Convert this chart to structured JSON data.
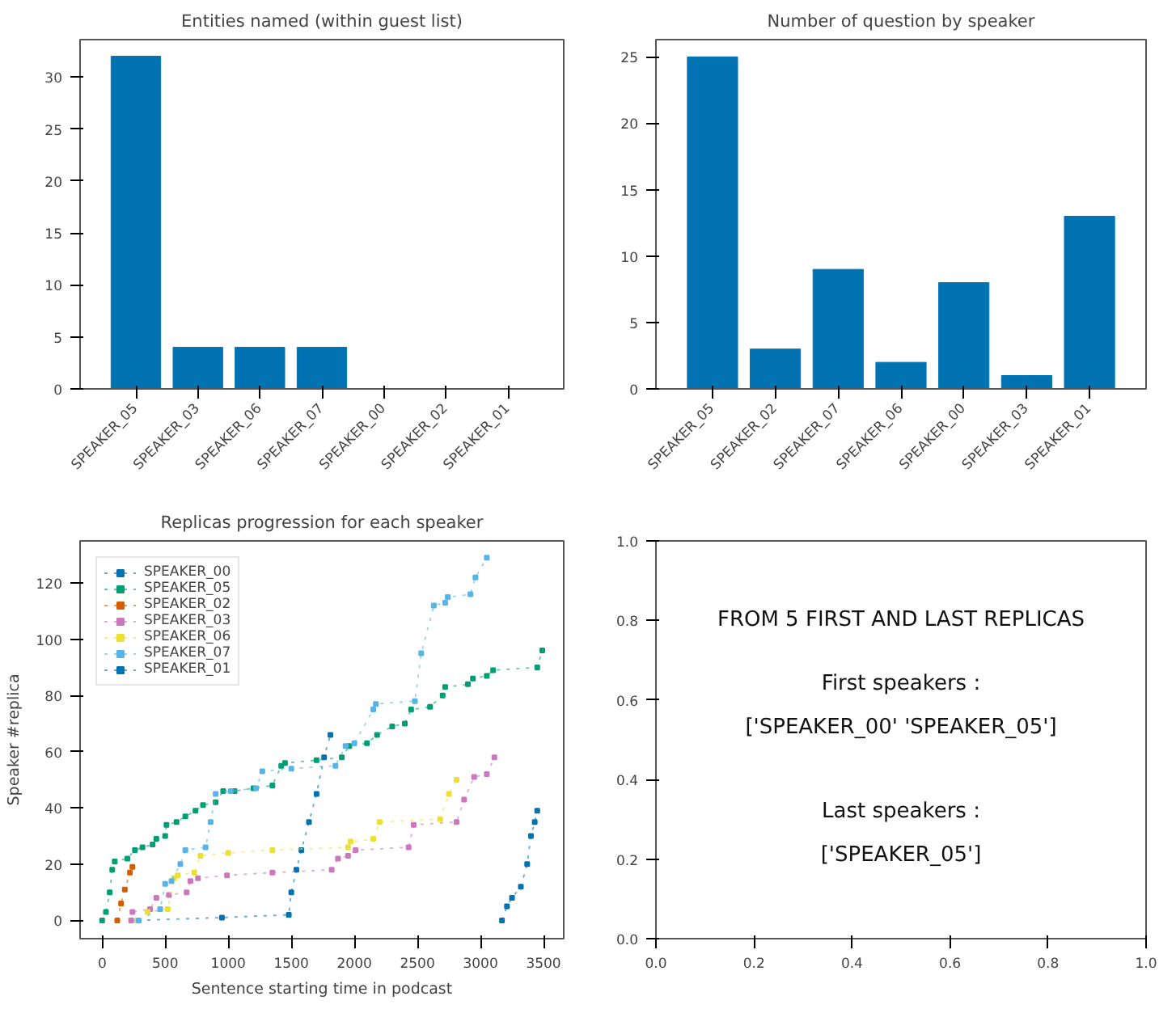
{
  "chart_data": [
    {
      "type": "bar",
      "title": "Entities named (within guest list)",
      "categories": [
        "SPEAKER_05",
        "SPEAKER_03",
        "SPEAKER_06",
        "SPEAKER_07",
        "SPEAKER_00",
        "SPEAKER_02",
        "SPEAKER_01"
      ],
      "values": [
        32,
        4,
        4,
        4,
        0,
        0,
        0
      ],
      "color": "#0173b2",
      "ylim": [
        0,
        33.6
      ],
      "yticks": [
        0,
        5,
        10,
        15,
        20,
        25,
        30
      ],
      "grid": false
    },
    {
      "type": "bar",
      "title": "Number of question by speaker",
      "categories": [
        "SPEAKER_05",
        "SPEAKER_02",
        "SPEAKER_07",
        "SPEAKER_06",
        "SPEAKER_00",
        "SPEAKER_03",
        "SPEAKER_01"
      ],
      "values": [
        25,
        3,
        9,
        2,
        8,
        1,
        13
      ],
      "color": "#0173b2",
      "ylim": [
        0,
        26.3
      ],
      "yticks": [
        0,
        5,
        10,
        15,
        20,
        25
      ],
      "grid": false
    },
    {
      "type": "line",
      "title": "Replicas progression for each speaker",
      "xlabel": "Sentence starting time in podcast",
      "ylabel": "Speaker #replica",
      "marker": "square",
      "line_style": "dotted",
      "legend": "top left",
      "grid": false,
      "xlim": [
        -175,
        3660
      ],
      "xticks": [
        0,
        500,
        1000,
        1500,
        2000,
        2500,
        3000,
        3500
      ],
      "ylim": [
        -6.5,
        135
      ],
      "yticks": [
        0,
        20,
        40,
        60,
        80,
        100,
        120
      ],
      "series": [
        {
          "name": "SPEAKER_00",
          "color": "#0173b2",
          "x": [
            280,
            950,
            1480,
            1500,
            1540,
            1580,
            1640,
            1700,
            1760,
            1810
          ],
          "values": [
            0,
            1,
            2,
            10,
            18,
            25,
            35,
            45,
            58,
            66
          ]
        },
        {
          "name": "SPEAKER_05",
          "color": "#029e73",
          "x": [
            0,
            30,
            60,
            80,
            100,
            200,
            260,
            320,
            400,
            430,
            500,
            510,
            590,
            660,
            740,
            800,
            900,
            960,
            1050,
            1200,
            1350,
            1420,
            1450,
            1700,
            1900,
            1960,
            2100,
            2180,
            2300,
            2400,
            2450,
            2600,
            2700,
            2720,
            2900,
            2940,
            3050,
            3100,
            3450,
            3490
          ],
          "values": [
            0,
            3,
            10,
            18,
            21,
            22,
            25,
            26,
            27,
            29,
            30,
            34,
            35,
            37,
            39,
            41,
            42,
            46,
            46,
            47,
            48,
            55,
            56,
            57,
            58,
            62,
            63,
            66,
            69,
            70,
            75,
            76,
            80,
            83,
            84,
            86,
            87,
            89,
            90,
            96
          ]
        },
        {
          "name": "SPEAKER_02",
          "color": "#d55e00",
          "x": [
            120,
            150,
            180,
            220,
            240
          ],
          "values": [
            0,
            6,
            11,
            17,
            19
          ]
        },
        {
          "name": "SPEAKER_03",
          "color": "#cc78bc",
          "x": [
            230,
            240,
            380,
            430,
            530,
            670,
            700,
            760,
            990,
            1350,
            1820,
            1870,
            1950,
            2010,
            2430,
            2470,
            2810,
            2870,
            2950,
            3050,
            3110
          ],
          "values": [
            0,
            3,
            4,
            8,
            9,
            10,
            14,
            15,
            16,
            17,
            18,
            22,
            23,
            25,
            26,
            34,
            35,
            43,
            51,
            52,
            58
          ]
        },
        {
          "name": "SPEAKER_06",
          "color": "#ece133",
          "x": [
            280,
            360,
            520,
            570,
            600,
            730,
            780,
            1000,
            1350,
            1950,
            1970,
            2150,
            2200,
            2680,
            2750,
            2810
          ],
          "values": [
            0,
            3,
            4,
            15,
            16,
            17,
            23,
            24,
            25,
            26,
            28,
            29,
            35,
            36,
            45,
            50
          ]
        },
        {
          "name": "SPEAKER_07",
          "color": "#56b4e9",
          "x": [
            290,
            460,
            500,
            550,
            620,
            660,
            820,
            860,
            900,
            1020,
            1220,
            1270,
            1500,
            1850,
            1930,
            2000,
            2150,
            2170,
            2480,
            2530,
            2630,
            2720,
            2740,
            2920,
            2960,
            3050
          ],
          "values": [
            0,
            4,
            13,
            14,
            20,
            25,
            26,
            35,
            45,
            46,
            47,
            53,
            54,
            55,
            62,
            63,
            75,
            77,
            78,
            95,
            112,
            113,
            115,
            116,
            122,
            129
          ]
        },
        {
          "name": "SPEAKER_01",
          "color": "#0173b2",
          "x": [
            3170,
            3210,
            3250,
            3320,
            3370,
            3400,
            3430,
            3450
          ],
          "values": [
            0,
            5,
            8,
            12,
            20,
            30,
            35,
            39
          ]
        }
      ]
    },
    {
      "type": "scatter",
      "annotations": [
        "FROM 5 FIRST AND LAST REPLICAS",
        "First speakers :",
        "['SPEAKER_00' 'SPEAKER_05']",
        "Last speakers :",
        "['SPEAKER_05']"
      ],
      "grid": false,
      "xlim": [
        0,
        1
      ],
      "ylim": [
        0,
        1
      ],
      "xticks": [
        {
          "value": 0,
          "label": "0.0"
        },
        {
          "value": 0.2,
          "label": "0.2"
        },
        {
          "value": 0.4,
          "label": "0.4"
        },
        {
          "value": 0.6,
          "label": "0.6"
        },
        {
          "value": 0.8,
          "label": "0.8"
        },
        {
          "value": 1,
          "label": "1.0"
        }
      ],
      "yticks": [
        {
          "value": 0,
          "label": "0.0"
        },
        {
          "value": 0.2,
          "label": "0.2"
        },
        {
          "value": 0.4,
          "label": "0.4"
        },
        {
          "value": 0.6,
          "label": "0.6"
        },
        {
          "value": 0.8,
          "label": "0.8"
        },
        {
          "value": 1,
          "label": "1.0"
        }
      ]
    }
  ]
}
